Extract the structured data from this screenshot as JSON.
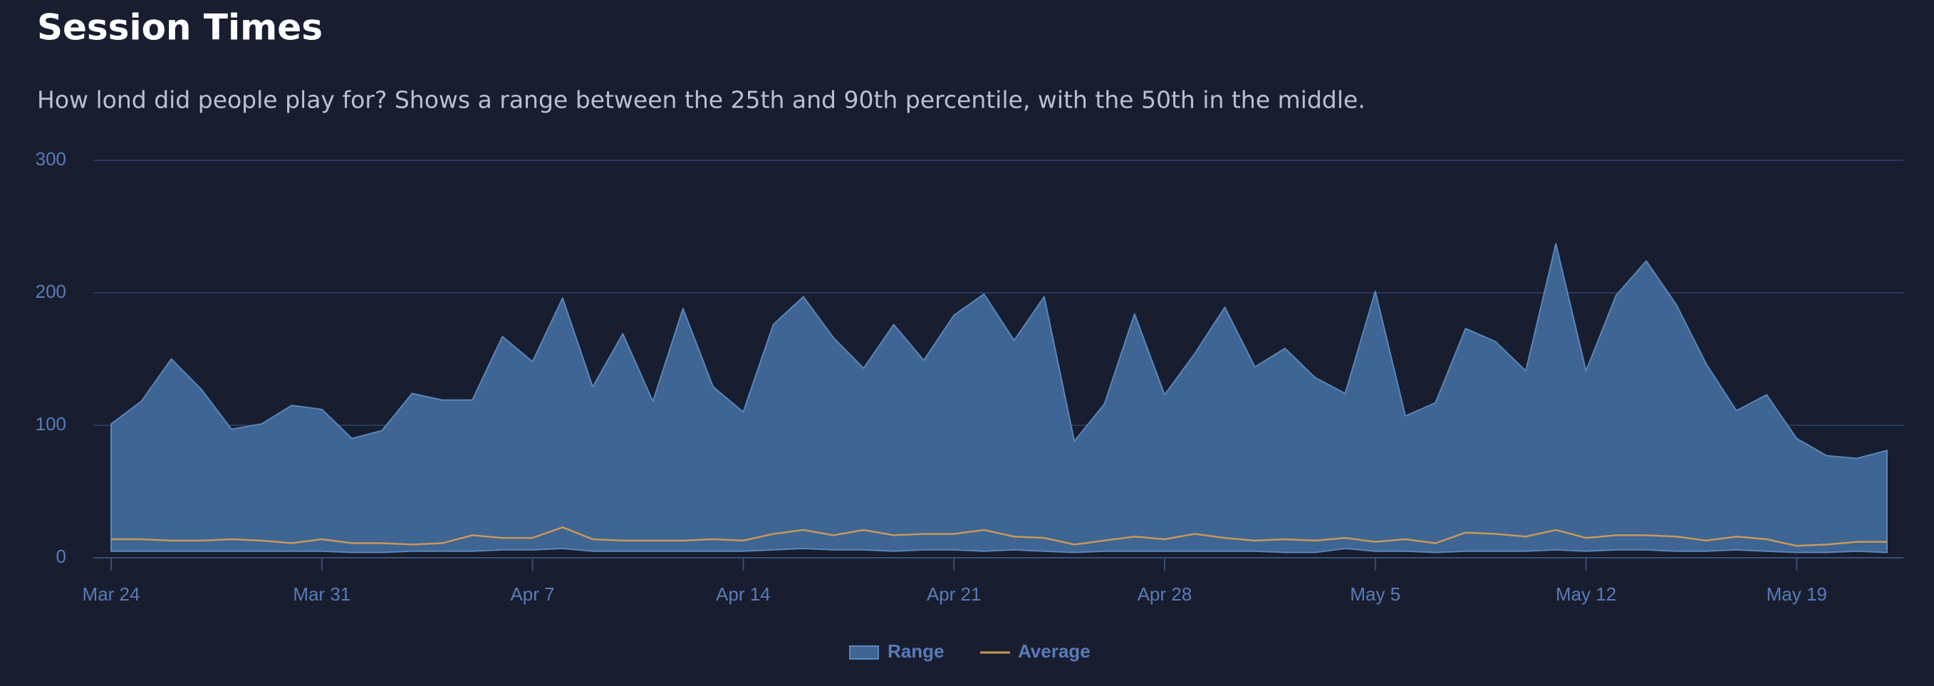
{
  "chart_data": {
    "type": "area-range",
    "title": "Session Times",
    "subtitle": "How lond did people play for? Shows a range between the 25th and 90th percentile, with the 50th in the middle.",
    "categories": [
      "Mar 24",
      null,
      null,
      null,
      null,
      null,
      null,
      "Mar 31",
      null,
      null,
      null,
      null,
      null,
      null,
      "Apr 7",
      null,
      null,
      null,
      null,
      null,
      null,
      "Apr 14",
      null,
      null,
      null,
      null,
      null,
      null,
      "Apr 21",
      null,
      null,
      null,
      null,
      null,
      null,
      "Apr 28",
      null,
      null,
      null,
      null,
      null,
      null,
      "May 5",
      null,
      null,
      null,
      null,
      null,
      null,
      "May 12",
      null,
      null,
      null,
      null,
      null,
      null,
      "May 19",
      null,
      null,
      null
    ],
    "series": [
      {
        "name": "Range",
        "color": "#3e6593",
        "values": [
          101,
          118,
          150,
          127,
          97,
          101,
          115,
          112,
          90,
          96,
          124,
          119,
          119,
          167,
          148,
          196,
          129,
          169,
          118,
          188,
          129,
          110,
          176,
          197,
          166,
          143,
          176,
          149,
          183,
          199,
          164,
          197,
          88,
          116,
          184,
          123,
          154,
          189,
          144,
          158,
          136,
          124,
          201,
          107,
          117,
          173,
          163,
          141,
          237,
          141,
          198,
          224,
          191,
          146,
          111,
          123,
          90,
          77,
          75,
          81
        ],
        "low": [
          5,
          5,
          5,
          5,
          5,
          5,
          5,
          5,
          4,
          4,
          5,
          5,
          5,
          6,
          6,
          7,
          5,
          5,
          5,
          5,
          5,
          5,
          6,
          7,
          6,
          6,
          5,
          6,
          6,
          5,
          6,
          5,
          4,
          5,
          5,
          5,
          5,
          5,
          5,
          4,
          4,
          7,
          5,
          5,
          4,
          5,
          5,
          5,
          6,
          5,
          6,
          6,
          5,
          5,
          6,
          5,
          4,
          4,
          5,
          4
        ]
      },
      {
        "name": "Average",
        "color": "#c9975a",
        "values": [
          14,
          14,
          13,
          13,
          14,
          13,
          11,
          14,
          11,
          11,
          10,
          11,
          17,
          15,
          15,
          23,
          14,
          13,
          13,
          13,
          14,
          13,
          18,
          21,
          17,
          21,
          17,
          18,
          18,
          21,
          16,
          15,
          10,
          13,
          16,
          14,
          18,
          15,
          13,
          14,
          13,
          15,
          12,
          14,
          11,
          19,
          18,
          16,
          21,
          15,
          17,
          17,
          16,
          13,
          16,
          14,
          9,
          10,
          12,
          12
        ]
      }
    ],
    "ylim": [
      0,
      300
    ],
    "yticks": [
      0,
      100,
      200,
      300
    ],
    "grid": true,
    "legend": "bottom"
  }
}
